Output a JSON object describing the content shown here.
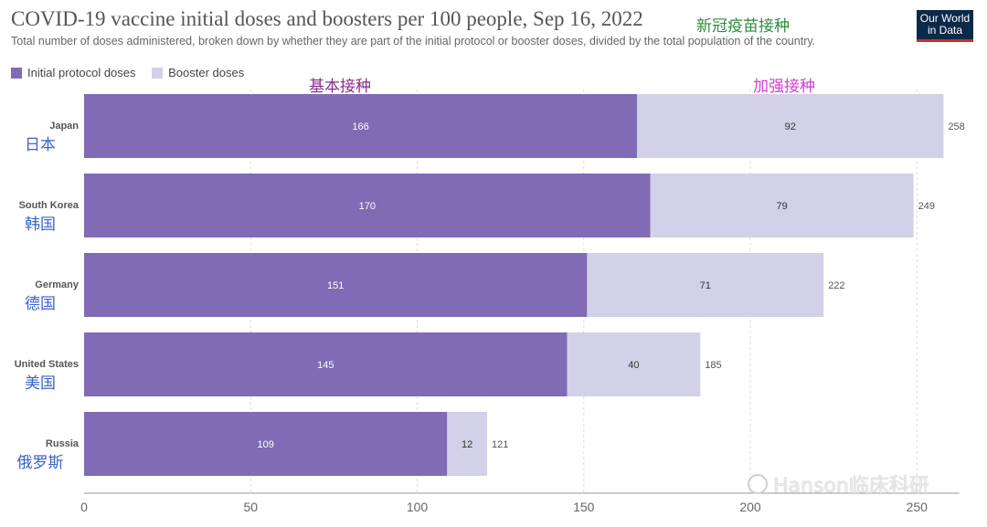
{
  "header": {
    "title": "COVID-19 vaccine initial doses and boosters per 100 people, Sep 16, 2022",
    "title_cn": "新冠疫苗接种",
    "subtitle": "Total number of doses administered, broken down by whether they are part of the initial protocol or booster doses, divided by the total population of the country.",
    "logo_line1": "Our World",
    "logo_line2": "in Data"
  },
  "legend": {
    "initial": "Initial protocol doses",
    "booster": "Booster doses"
  },
  "annotations": {
    "initial_cn": "基本接种",
    "booster_cn": "加强接种"
  },
  "watermark": "Hanson临床科研",
  "colors": {
    "initial": "#806bb4",
    "booster": "#d3d1e7",
    "initial_cn_label": "#8a2d8a",
    "booster_cn_label": "#d63bd6",
    "country_cn_label": "#3b63c9"
  },
  "chart_data": {
    "type": "bar",
    "orientation": "horizontal",
    "stacked": true,
    "categories": [
      "Japan",
      "South Korea",
      "Germany",
      "United States",
      "Russia"
    ],
    "categories_cn": [
      "日本",
      "韩国",
      "德国",
      "美国",
      "俄罗斯"
    ],
    "series": [
      {
        "name": "Initial protocol doses",
        "values": [
          166,
          170,
          151,
          145,
          109
        ]
      },
      {
        "name": "Booster doses",
        "values": [
          92,
          79,
          71,
          40,
          12
        ]
      }
    ],
    "totals": [
      258,
      249,
      222,
      185,
      121
    ],
    "x_ticks": [
      0,
      50,
      100,
      150,
      200,
      250
    ],
    "xlim": [
      0,
      260
    ],
    "grid": "vertical dashed",
    "legend_position": "top-left"
  }
}
